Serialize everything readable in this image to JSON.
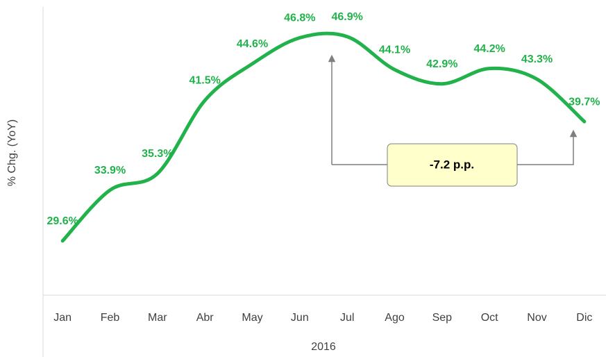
{
  "chart_data": {
    "type": "line",
    "y_label": "% Chg. (YoY)",
    "x_group_label": "2016",
    "categories": [
      "Jan",
      "Feb",
      "Mar",
      "Abr",
      "May",
      "Jun",
      "Jul",
      "Ago",
      "Sep",
      "Oct",
      "Nov",
      "Dic"
    ],
    "series": [
      {
        "name": "% Chg. (YoY)",
        "color": "#21b24b",
        "values": [
          29.6,
          33.9,
          35.3,
          41.5,
          44.6,
          46.8,
          46.9,
          44.1,
          42.9,
          44.2,
          43.3,
          39.7
        ],
        "value_labels": [
          "29.6%",
          "33.9%",
          "35.3%",
          "41.5%",
          "44.6%",
          "46.8%",
          "46.9%",
          "44.1%",
          "42.9%",
          "44.2%",
          "43.3%",
          "39.7%"
        ]
      }
    ],
    "ylim": [
      25,
      50
    ],
    "annotation": "-7.2 p.p."
  }
}
